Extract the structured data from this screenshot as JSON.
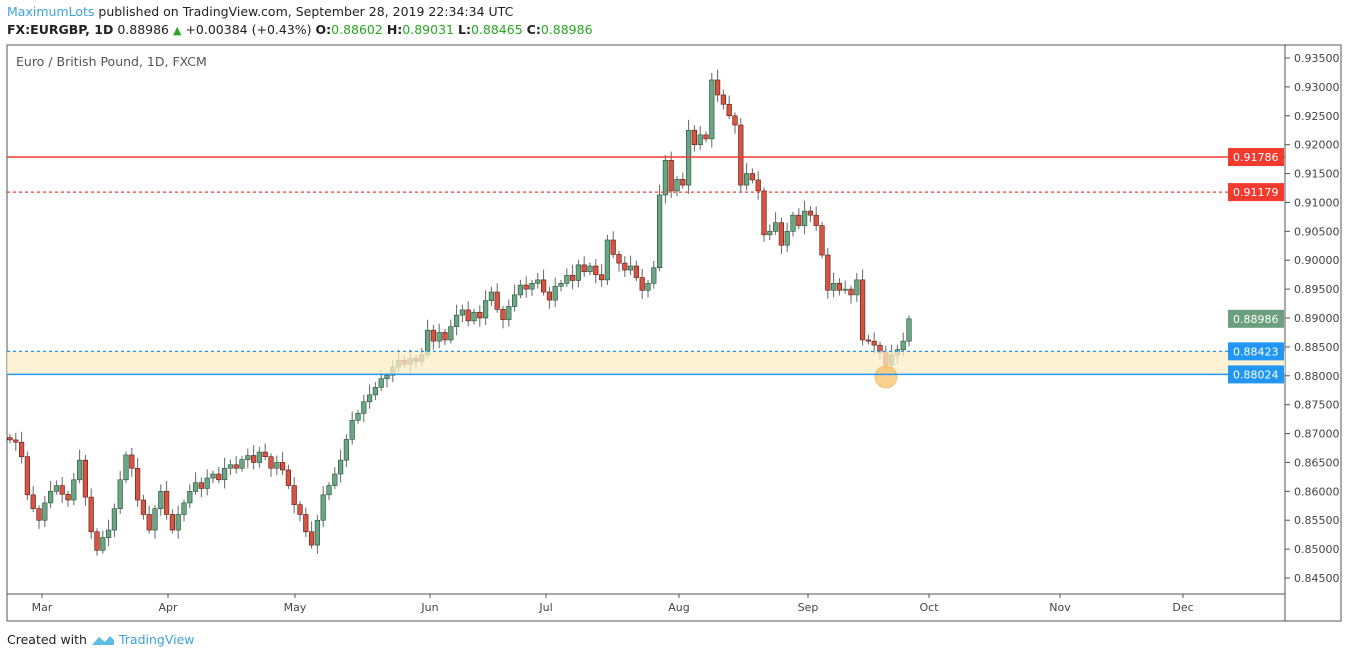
{
  "header": {
    "author": "MaximumLots",
    "published": "published on TradingView.com, September 28, 2019 22:34:34 UTC",
    "symbol": "FX:EURGBP, 1D",
    "last": "0.88986",
    "change": "+0.00384 (+0.43%)",
    "o_label": "O:",
    "o": "0.88602",
    "h_label": "H:",
    "h": "0.89031",
    "l_label": "L:",
    "l": "0.88465",
    "c_label": "C:",
    "c": "0.88986"
  },
  "legend": "Euro / British Pound, 1D, FXCM",
  "footer": {
    "created": "Created with",
    "brand": "TradingView"
  },
  "colors": {
    "up": "#6ba583",
    "down": "#d75442",
    "res": "#f23b2e",
    "sup": "#2196f3",
    "zone": "#fdeec6",
    "marker": "#f7b955"
  },
  "chart_data": {
    "type": "candlestick",
    "title": "Euro / British Pound, 1D, FXCM",
    "ylim": [
      0.842,
      0.9365
    ],
    "y_ticks": [
      "0.93500",
      "0.93000",
      "0.92500",
      "0.92000",
      "0.91500",
      "0.91000",
      "0.90500",
      "0.90000",
      "0.89500",
      "0.89000",
      "0.88500",
      "0.88000",
      "0.87500",
      "0.87000",
      "0.86500",
      "0.86000",
      "0.85500",
      "0.85000",
      "0.84500"
    ],
    "x_ticks": [
      "Mar",
      "Apr",
      "May",
      "Jun",
      "Jul",
      "Aug",
      "Sep",
      "Oct",
      "Nov",
      "Dec"
    ],
    "closes": [
      0.8689,
      0.8685,
      0.866,
      0.8594,
      0.857,
      0.855,
      0.858,
      0.86,
      0.861,
      0.8595,
      0.8585,
      0.862,
      0.8654,
      0.859,
      0.853,
      0.8498,
      0.852,
      0.8533,
      0.857,
      0.862,
      0.8663,
      0.864,
      0.8585,
      0.856,
      0.8533,
      0.857,
      0.86,
      0.856,
      0.8533,
      0.856,
      0.858,
      0.86,
      0.8615,
      0.8605,
      0.8623,
      0.863,
      0.862,
      0.864,
      0.8646,
      0.864,
      0.8655,
      0.8662,
      0.865,
      0.8668,
      0.866,
      0.864,
      0.865,
      0.8637,
      0.861,
      0.8577,
      0.856,
      0.853,
      0.8507,
      0.855,
      0.8594,
      0.861,
      0.863,
      0.8654,
      0.869,
      0.8723,
      0.8735,
      0.8755,
      0.8767,
      0.878,
      0.8795,
      0.8801,
      0.8815,
      0.8827,
      0.882,
      0.883,
      0.8825,
      0.8836,
      0.8879,
      0.886,
      0.8875,
      0.8862,
      0.8885,
      0.8905,
      0.8914,
      0.8895,
      0.891,
      0.89,
      0.893,
      0.8945,
      0.8915,
      0.8897,
      0.892,
      0.894,
      0.8957,
      0.895,
      0.896,
      0.8966,
      0.8945,
      0.8931,
      0.8955,
      0.896,
      0.8974,
      0.8965,
      0.8992,
      0.898,
      0.899,
      0.8975,
      0.8966,
      0.9035,
      0.901,
      0.8995,
      0.8983,
      0.899,
      0.897,
      0.8948,
      0.896,
      0.8987,
      0.9113,
      0.9173,
      0.912,
      0.914,
      0.913,
      0.9225,
      0.92,
      0.9217,
      0.921,
      0.9312,
      0.9286,
      0.927,
      0.925,
      0.9234,
      0.913,
      0.915,
      0.9139,
      0.912,
      0.9044,
      0.905,
      0.9065,
      0.9026,
      0.905,
      0.9078,
      0.906,
      0.9085,
      0.9078,
      0.906,
      0.9009,
      0.8948,
      0.896,
      0.8948,
      0.895,
      0.894,
      0.8966,
      0.8862,
      0.886,
      0.8853,
      0.884,
      0.8819,
      0.8836,
      0.8845,
      0.886,
      0.88986
    ],
    "levels": [
      {
        "name": "resistance",
        "price": 0.91786,
        "label": "0.91786",
        "style": "solid"
      },
      {
        "name": "resistance-2",
        "price": 0.91179,
        "label": "0.91179",
        "style": "dotted"
      },
      {
        "name": "last-price",
        "price": 0.88986,
        "label": "0.88986",
        "style": "none"
      },
      {
        "name": "zone-top",
        "price": 0.88423,
        "label": "0.88423",
        "style": "dotted"
      },
      {
        "name": "zone-bottom",
        "price": 0.88024,
        "label": "0.88024",
        "style": "solid"
      }
    ]
  }
}
